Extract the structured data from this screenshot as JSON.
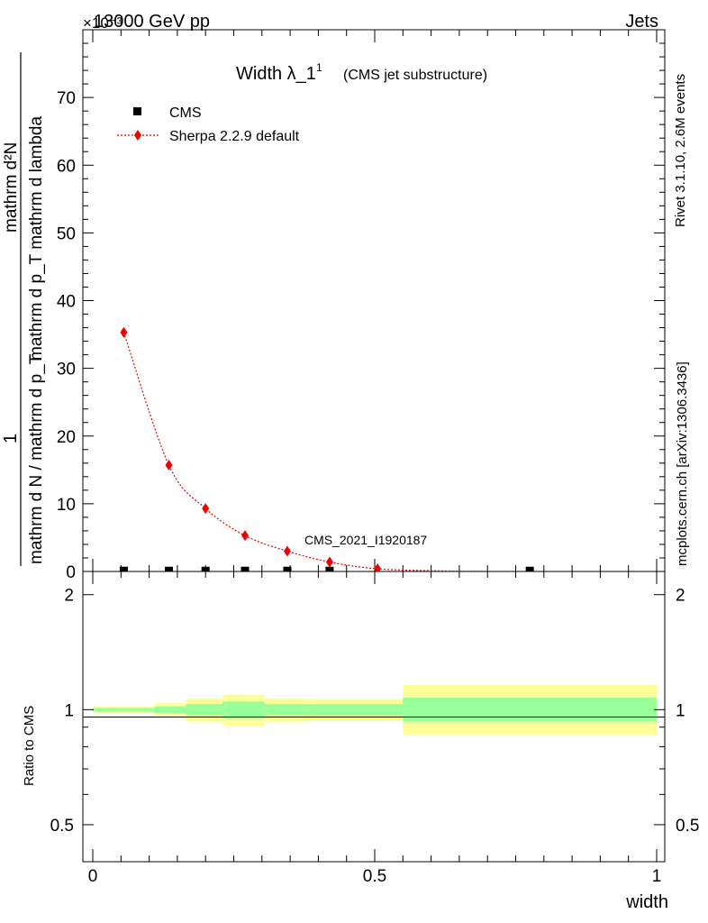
{
  "header": {
    "left": "13000 GeV pp",
    "right": "Jets",
    "exponent": "×10⁻³"
  },
  "side_labels": {
    "rivet": "Rivet 3.1.10,  2.6M events",
    "mcplots": "mcplots.cern.ch [arXiv:1306.3436]"
  },
  "chart_data": {
    "type": "scatter",
    "title_main": "Width λ_1",
    "title_sup": "1",
    "title_sub": "(CMS jet substructure)",
    "watermark": "CMS_2021_I1920187",
    "ylabel_parts": {
      "top_num": "mathrm d²N",
      "top_den": "mathrm d p_T mathrm d lambda",
      "num": "1",
      "den": "mathrm d N / mathrm d p_T"
    },
    "xlabel": "width",
    "ratio_ylabel": "Ratio to CMS",
    "xlim": [
      0,
      1
    ],
    "ylim": [
      0,
      80
    ],
    "yticks": [
      0,
      10,
      20,
      30,
      40,
      50,
      60,
      70
    ],
    "xticks": [
      0,
      0.5,
      1
    ],
    "xtick_labels": [
      "0",
      "0.5",
      "1"
    ],
    "ratio_ylim": [
      0.4,
      2.3
    ],
    "ratio_yticks": [
      0.5,
      1,
      2
    ],
    "ratio_ytick_labels": [
      "0.5",
      "1",
      "2"
    ],
    "series": [
      {
        "name": "CMS",
        "marker": "square",
        "color": "#000000",
        "x": [
          0.055,
          0.135,
          0.2,
          0.27,
          0.345,
          0.42,
          0.775
        ],
        "y": [
          0.1,
          0.1,
          0.1,
          0.1,
          0.1,
          0.1,
          0.1
        ]
      },
      {
        "name": "Sherpa 2.2.9 default",
        "marker": "diamond",
        "color": "#ee0000",
        "x": [
          0.055,
          0.135,
          0.2,
          0.27,
          0.345,
          0.42,
          0.505,
          0.62,
          0.775
        ],
        "y": [
          35.3,
          15.7,
          9.3,
          5.3,
          3.0,
          1.4,
          0.4,
          0.08,
          0.01
        ]
      }
    ],
    "ratio_bands": [
      {
        "x0": 0.0,
        "x1": 0.11,
        "in_lo": 0.99,
        "in_hi": 1.01,
        "out_lo": 0.98,
        "out_hi": 1.02
      },
      {
        "x0": 0.11,
        "x1": 0.165,
        "in_lo": 0.98,
        "in_hi": 1.02,
        "out_lo": 0.96,
        "out_hi": 1.04
      },
      {
        "x0": 0.165,
        "x1": 0.23,
        "in_lo": 0.965,
        "in_hi": 1.035,
        "out_lo": 0.93,
        "out_hi": 1.07
      },
      {
        "x0": 0.23,
        "x1": 0.305,
        "in_lo": 0.95,
        "in_hi": 1.05,
        "out_lo": 0.905,
        "out_hi": 1.095
      },
      {
        "x0": 0.305,
        "x1": 0.38,
        "in_lo": 0.965,
        "in_hi": 1.035,
        "out_lo": 0.93,
        "out_hi": 1.07
      },
      {
        "x0": 0.38,
        "x1": 0.55,
        "in_lo": 0.965,
        "in_hi": 1.035,
        "out_lo": 0.935,
        "out_hi": 1.065
      },
      {
        "x0": 0.55,
        "x1": 1.0,
        "in_lo": 0.93,
        "in_hi": 1.075,
        "out_lo": 0.86,
        "out_hi": 1.16
      }
    ],
    "colors": {
      "band_outer": "#ffff99",
      "band_inner": "#99ff99",
      "watermark": "#999999",
      "side_text": "#808080"
    }
  }
}
